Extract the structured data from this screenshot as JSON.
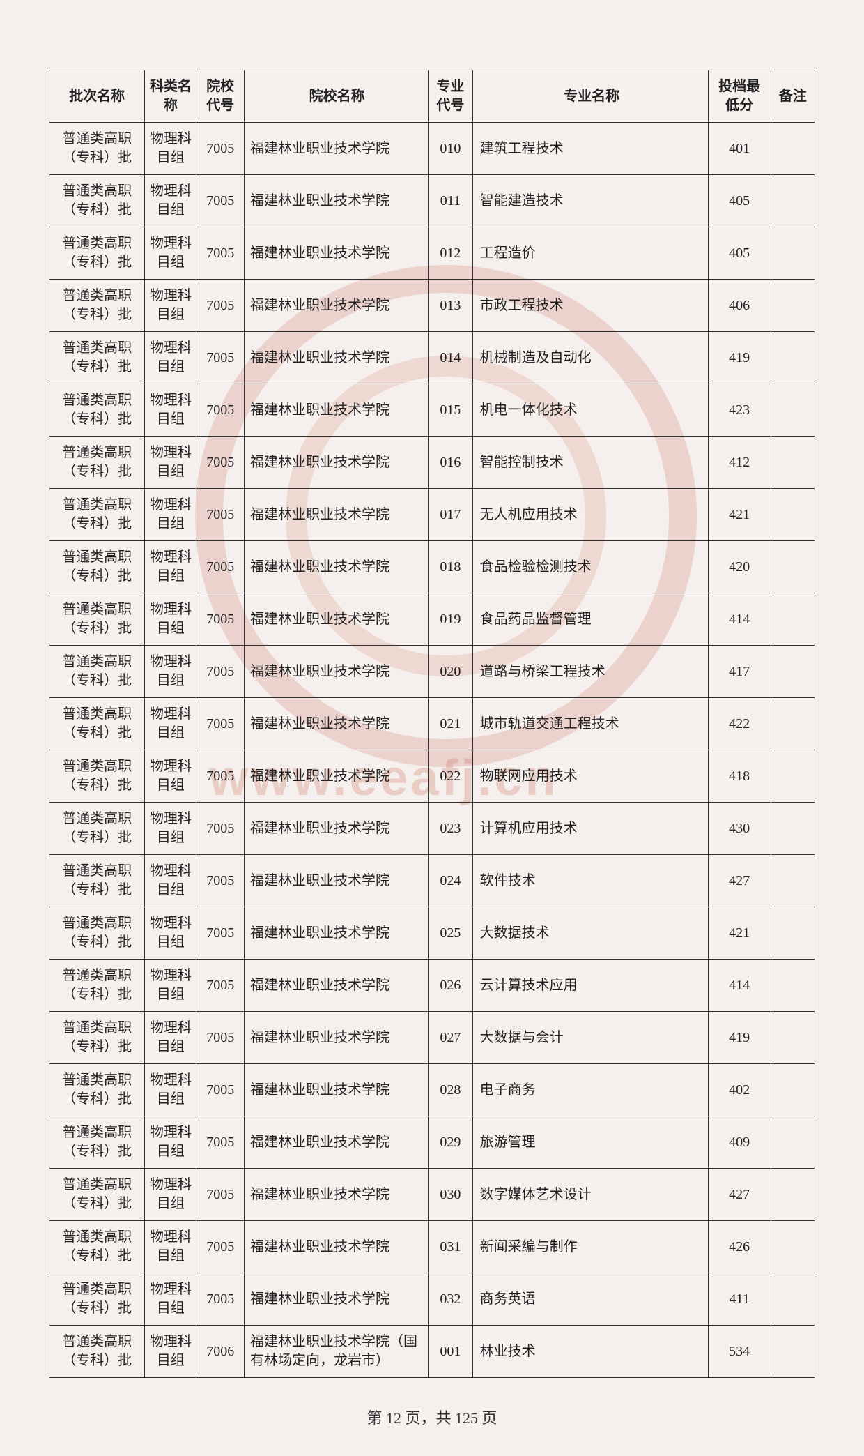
{
  "table": {
    "headers": [
      "批次名称",
      "科类名称",
      "院校代号",
      "院校名称",
      "专业代号",
      "专业名称",
      "投档最低分",
      "备注"
    ],
    "rows": [
      [
        "普通类高职（专科）批",
        "物理科目组",
        "7005",
        "福建林业职业技术学院",
        "010",
        "建筑工程技术",
        "401",
        ""
      ],
      [
        "普通类高职（专科）批",
        "物理科目组",
        "7005",
        "福建林业职业技术学院",
        "011",
        "智能建造技术",
        "405",
        ""
      ],
      [
        "普通类高职（专科）批",
        "物理科目组",
        "7005",
        "福建林业职业技术学院",
        "012",
        "工程造价",
        "405",
        ""
      ],
      [
        "普通类高职（专科）批",
        "物理科目组",
        "7005",
        "福建林业职业技术学院",
        "013",
        "市政工程技术",
        "406",
        ""
      ],
      [
        "普通类高职（专科）批",
        "物理科目组",
        "7005",
        "福建林业职业技术学院",
        "014",
        "机械制造及自动化",
        "419",
        ""
      ],
      [
        "普通类高职（专科）批",
        "物理科目组",
        "7005",
        "福建林业职业技术学院",
        "015",
        "机电一体化技术",
        "423",
        ""
      ],
      [
        "普通类高职（专科）批",
        "物理科目组",
        "7005",
        "福建林业职业技术学院",
        "016",
        "智能控制技术",
        "412",
        ""
      ],
      [
        "普通类高职（专科）批",
        "物理科目组",
        "7005",
        "福建林业职业技术学院",
        "017",
        "无人机应用技术",
        "421",
        ""
      ],
      [
        "普通类高职（专科）批",
        "物理科目组",
        "7005",
        "福建林业职业技术学院",
        "018",
        "食品检验检测技术",
        "420",
        ""
      ],
      [
        "普通类高职（专科）批",
        "物理科目组",
        "7005",
        "福建林业职业技术学院",
        "019",
        "食品药品监督管理",
        "414",
        ""
      ],
      [
        "普通类高职（专科）批",
        "物理科目组",
        "7005",
        "福建林业职业技术学院",
        "020",
        "道路与桥梁工程技术",
        "417",
        ""
      ],
      [
        "普通类高职（专科）批",
        "物理科目组",
        "7005",
        "福建林业职业技术学院",
        "021",
        "城市轨道交通工程技术",
        "422",
        ""
      ],
      [
        "普通类高职（专科）批",
        "物理科目组",
        "7005",
        "福建林业职业技术学院",
        "022",
        "物联网应用技术",
        "418",
        ""
      ],
      [
        "普通类高职（专科）批",
        "物理科目组",
        "7005",
        "福建林业职业技术学院",
        "023",
        "计算机应用技术",
        "430",
        ""
      ],
      [
        "普通类高职（专科）批",
        "物理科目组",
        "7005",
        "福建林业职业技术学院",
        "024",
        "软件技术",
        "427",
        ""
      ],
      [
        "普通类高职（专科）批",
        "物理科目组",
        "7005",
        "福建林业职业技术学院",
        "025",
        "大数据技术",
        "421",
        ""
      ],
      [
        "普通类高职（专科）批",
        "物理科目组",
        "7005",
        "福建林业职业技术学院",
        "026",
        "云计算技术应用",
        "414",
        ""
      ],
      [
        "普通类高职（专科）批",
        "物理科目组",
        "7005",
        "福建林业职业技术学院",
        "027",
        "大数据与会计",
        "419",
        ""
      ],
      [
        "普通类高职（专科）批",
        "物理科目组",
        "7005",
        "福建林业职业技术学院",
        "028",
        "电子商务",
        "402",
        ""
      ],
      [
        "普通类高职（专科）批",
        "物理科目组",
        "7005",
        "福建林业职业技术学院",
        "029",
        "旅游管理",
        "409",
        ""
      ],
      [
        "普通类高职（专科）批",
        "物理科目组",
        "7005",
        "福建林业职业技术学院",
        "030",
        "数字媒体艺术设计",
        "427",
        ""
      ],
      [
        "普通类高职（专科）批",
        "物理科目组",
        "7005",
        "福建林业职业技术学院",
        "031",
        "新闻采编与制作",
        "426",
        ""
      ],
      [
        "普通类高职（专科）批",
        "物理科目组",
        "7005",
        "福建林业职业技术学院",
        "032",
        "商务英语",
        "411",
        ""
      ],
      [
        "普通类高职（专科）批",
        "物理科目组",
        "7006",
        "福建林业职业技术学院（国有林场定向，龙岩市）",
        "001",
        "林业技术",
        "534",
        ""
      ]
    ]
  },
  "footer": "第 12 页，共 125 页",
  "watermark": "www.eeafj.cn",
  "styling": {
    "page_bg": "#f5f0ed",
    "border_color": "#333333",
    "text_color": "#222222",
    "header_fontsize": 20,
    "cell_fontsize": 20,
    "watermark_color": "rgba(200,100,80,0.25)",
    "seal_color": "rgba(200,80,60,0.18)"
  }
}
